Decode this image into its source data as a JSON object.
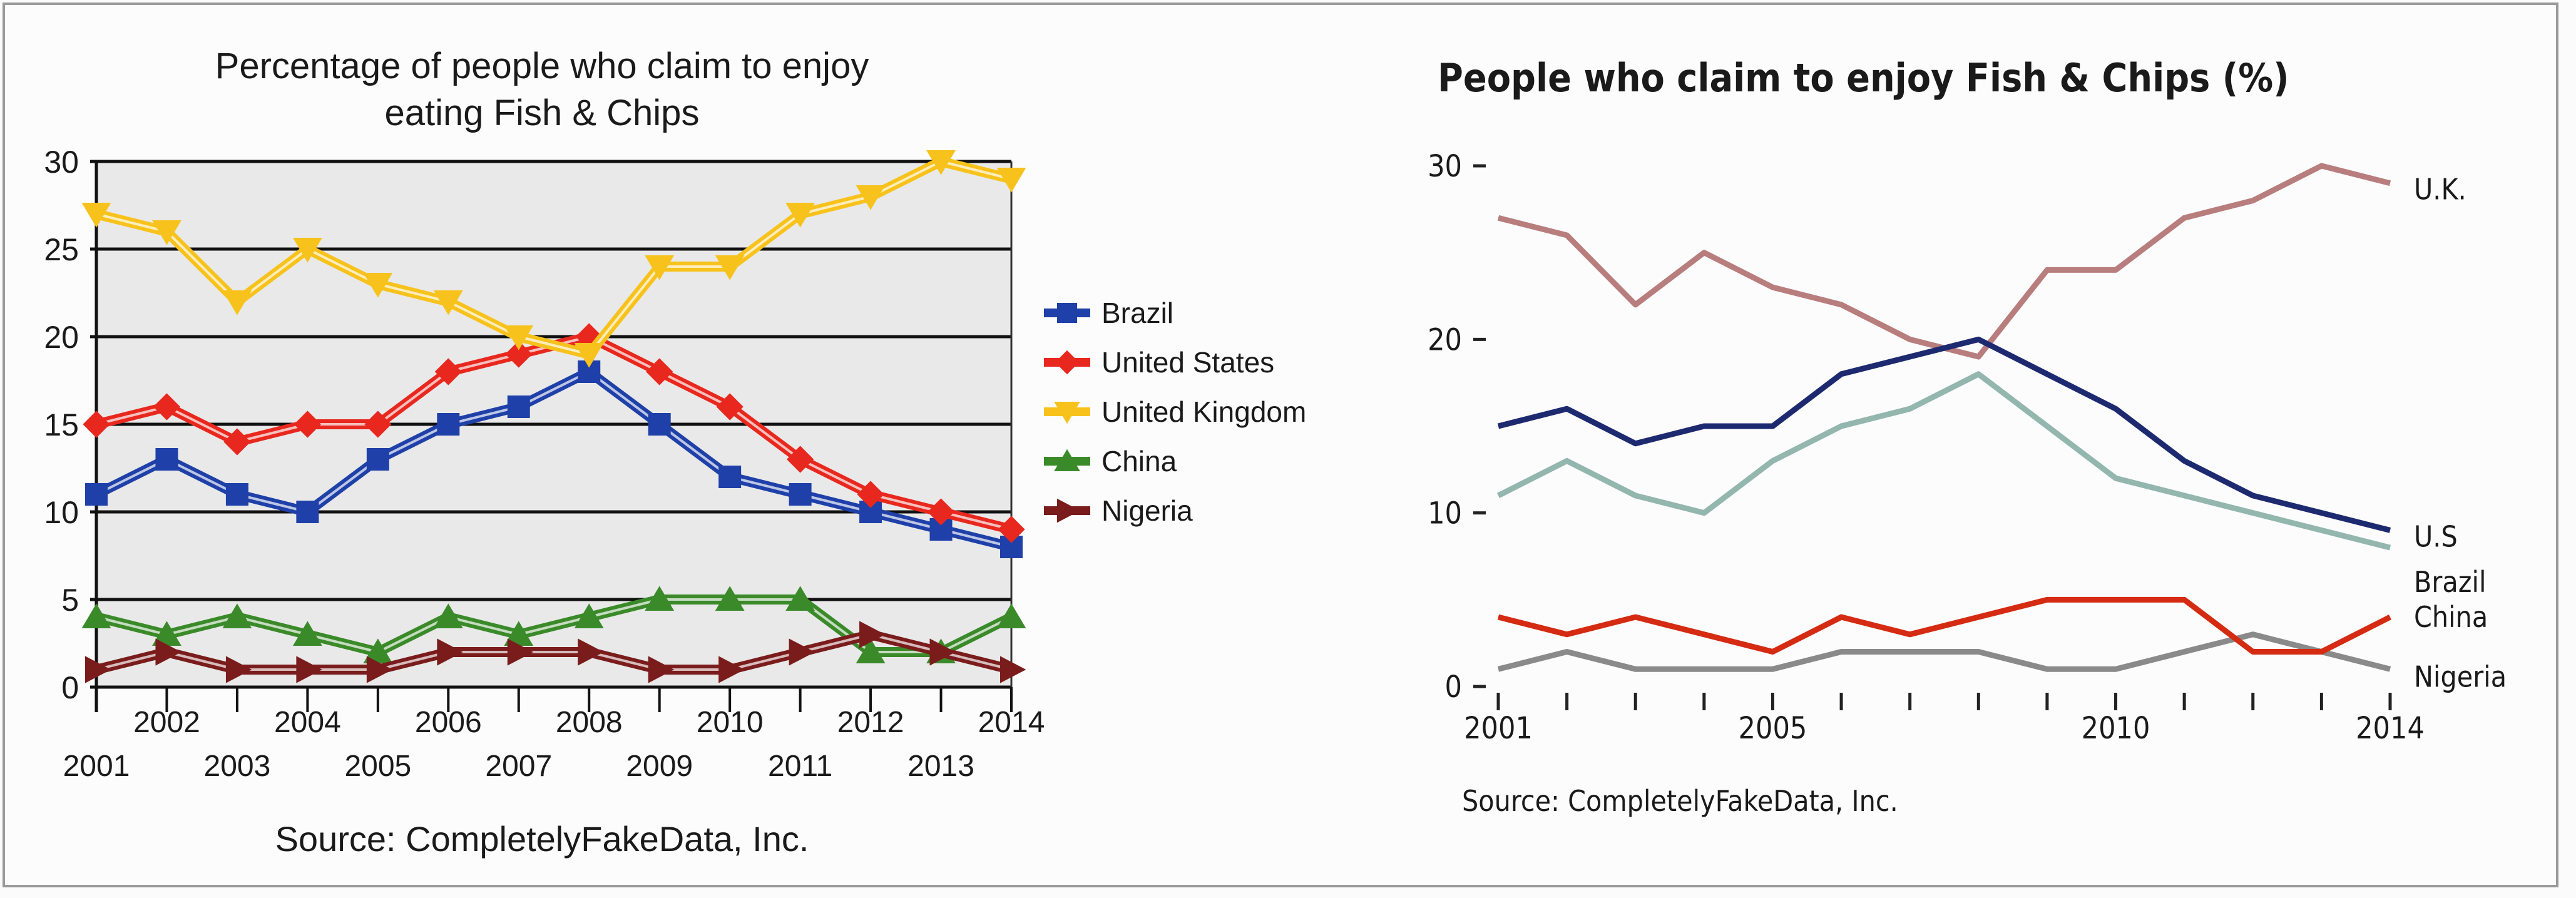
{
  "chart_data": [
    {
      "type": "line",
      "title": "Percentage of people who claim to enjoy eating Fish & Chips",
      "title_lines": [
        "Percentage of people who claim to enjoy",
        "eating Fish & Chips"
      ],
      "source": "Source: CompletelyFakeData, Inc.",
      "x": [
        2001,
        2002,
        2003,
        2004,
        2005,
        2006,
        2007,
        2008,
        2009,
        2010,
        2011,
        2012,
        2013,
        2014
      ],
      "ylim": [
        0,
        30
      ],
      "yticks": [
        0,
        5,
        10,
        15,
        20,
        25,
        30
      ],
      "grid": true,
      "legend": "right",
      "series": [
        {
          "name": "Brazil",
          "color": "#1f40a8",
          "marker": "square",
          "values": [
            11,
            13,
            11,
            10,
            13,
            15,
            16,
            18,
            15,
            12,
            11,
            10,
            9,
            8
          ]
        },
        {
          "name": "United States",
          "color": "#e8281e",
          "marker": "diamond",
          "values": [
            15,
            16,
            14,
            15,
            15,
            18,
            19,
            20,
            18,
            16,
            13,
            11,
            10,
            9
          ]
        },
        {
          "name": "United Kingdom",
          "color": "#f7c21c",
          "marker": "triangle-down",
          "values": [
            27,
            26,
            22,
            25,
            23,
            22,
            20,
            19,
            24,
            24,
            27,
            28,
            30,
            29
          ]
        },
        {
          "name": "China",
          "color": "#3b8a2a",
          "marker": "triangle-up",
          "values": [
            4,
            3,
            4,
            3,
            2,
            4,
            3,
            4,
            5,
            5,
            5,
            2,
            2,
            4
          ]
        },
        {
          "name": "Nigeria",
          "color": "#7a1c1c",
          "marker": "triangle-right",
          "values": [
            1,
            2,
            1,
            1,
            1,
            2,
            2,
            2,
            1,
            1,
            2,
            3,
            2,
            1
          ]
        }
      ]
    },
    {
      "type": "line",
      "title": "People who claim to enjoy Fish & Chips (%)",
      "source": "Source: CompletelyFakeData, Inc.",
      "x": [
        2001,
        2002,
        2003,
        2004,
        2005,
        2006,
        2007,
        2008,
        2009,
        2010,
        2011,
        2012,
        2013,
        2014
      ],
      "xticklabels": {
        "2001": "2001",
        "2005": "2005",
        "2010": "2010",
        "2014": "2014"
      },
      "ylim": [
        0,
        30
      ],
      "yticks": [
        0,
        10,
        20,
        30
      ],
      "grid": false,
      "legend": "direct labels at line ends",
      "series": [
        {
          "name": "U.K.",
          "color": "#b87d7d",
          "values": [
            27,
            26,
            22,
            25,
            23,
            22,
            20,
            19,
            24,
            24,
            27,
            28,
            30,
            29
          ]
        },
        {
          "name": "U.S",
          "color": "#1e2a70",
          "values": [
            15,
            16,
            14,
            15,
            15,
            18,
            19,
            20,
            18,
            16,
            13,
            11,
            10,
            9
          ]
        },
        {
          "name": "Brazil",
          "color": "#93b6ad",
          "values": [
            11,
            13,
            11,
            10,
            13,
            15,
            16,
            18,
            15,
            12,
            11,
            10,
            9,
            8
          ]
        },
        {
          "name": "China",
          "color": "#d42b12",
          "values": [
            4,
            3,
            4,
            3,
            2,
            4,
            3,
            4,
            5,
            5,
            5,
            2,
            2,
            4
          ]
        },
        {
          "name": "Nigeria",
          "color": "#8a8a8a",
          "values": [
            1,
            2,
            1,
            1,
            1,
            2,
            2,
            2,
            1,
            1,
            2,
            3,
            2,
            1
          ]
        }
      ]
    }
  ]
}
